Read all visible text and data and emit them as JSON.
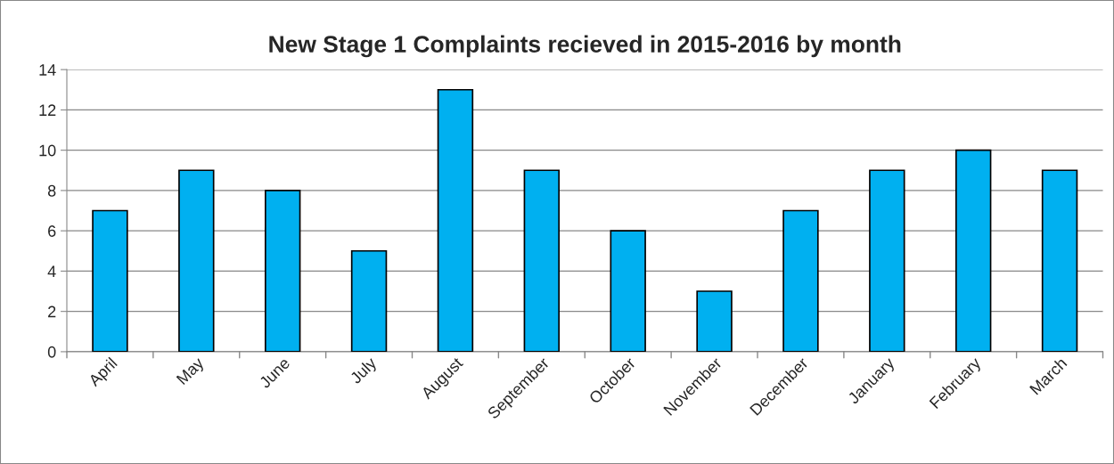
{
  "chart_data": {
    "type": "bar",
    "title": "New Stage 1 Complaints recieved in 2015-2016 by month",
    "categories": [
      "April",
      "May",
      "June",
      "July",
      "August",
      "September",
      "October",
      "November",
      "December",
      "January",
      "February",
      "March"
    ],
    "values": [
      7,
      9,
      8,
      5,
      13,
      9,
      6,
      3,
      7,
      9,
      10,
      9
    ],
    "color": "#00b0f0",
    "ylim": [
      0,
      14
    ],
    "yticks": [
      0,
      2,
      4,
      6,
      8,
      10,
      12,
      14
    ],
    "grid": "y",
    "legend": false
  }
}
